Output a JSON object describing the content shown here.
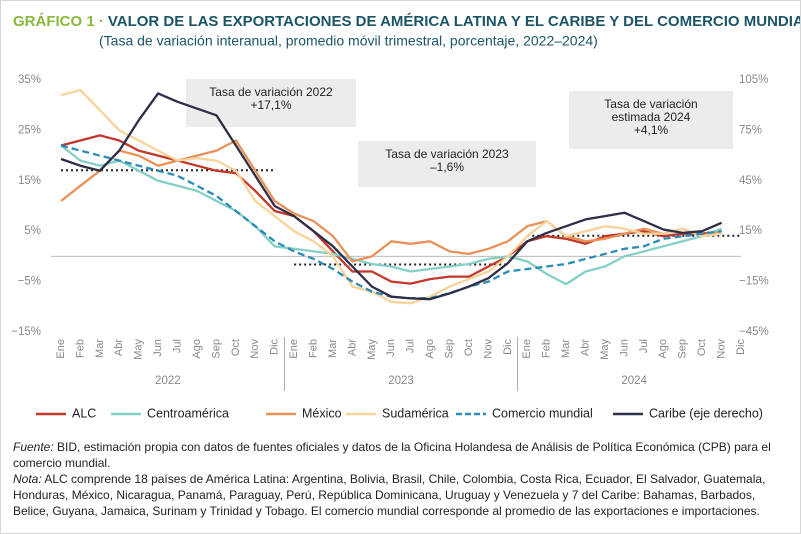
{
  "chart_data": {
    "type": "line",
    "figure_label": "GRÁFICO 1 ·",
    "title": "VALOR DE LAS EXPORTACIONES DE AMÉRICA LATINA Y EL CARIBE Y DEL COMERCIO MUNDIAL",
    "subtitle": "(Tasa de variación interanual, promedio móvil trimestral, porcentaje, 2022–2024)",
    "categories": [
      "Ene",
      "Feb",
      "Mar",
      "Abr",
      "May",
      "Jun",
      "Jul",
      "Ago",
      "Sep",
      "Oct",
      "Nov",
      "Dic",
      "Ene",
      "Feb",
      "Mar",
      "Abr",
      "May",
      "Jun",
      "Jul",
      "Ago",
      "Sep",
      "Oct",
      "Nov",
      "Dic",
      "Ene",
      "Feb",
      "Mar",
      "Abr",
      "May",
      "Jun",
      "Jul",
      "Ago",
      "Sep",
      "Oct",
      "Nov",
      "Dic"
    ],
    "x_groups": [
      "2022",
      "2023",
      "2024"
    ],
    "ylim": [
      -15,
      35
    ],
    "yticks": [
      {
        "value": -15,
        "label": "−15%"
      },
      {
        "value": -5,
        "label": "−5%"
      },
      {
        "value": 5,
        "label": "5%"
      },
      {
        "value": 15,
        "label": "15%"
      },
      {
        "value": 25,
        "label": "25%"
      },
      {
        "value": 35,
        "label": "35%"
      }
    ],
    "y2lim": [
      -45,
      105
    ],
    "y2ticks": [
      {
        "value": -45,
        "label": "−45%"
      },
      {
        "value": -15,
        "label": "−15%"
      },
      {
        "value": 15,
        "label": "15%"
      },
      {
        "value": 45,
        "label": "45%"
      },
      {
        "value": 75,
        "label": "75%"
      },
      {
        "value": 105,
        "label": "105%"
      }
    ],
    "grid": false,
    "legend": "bottom",
    "series": [
      {
        "name": "ALC",
        "color": "#c0392b",
        "values": [
          22,
          23,
          24,
          23,
          21,
          20,
          19,
          18,
          17,
          16.5,
          13,
          9,
          8,
          5,
          1,
          -3,
          -3,
          -5,
          -5.4,
          -4.5,
          -4,
          -4,
          -2,
          0,
          3,
          4,
          3.5,
          2.5,
          4,
          4.5,
          5,
          4,
          4.5,
          4.5,
          5,
          null
        ]
      },
      {
        "name": "Centroamérica",
        "color": "#84d0c9",
        "values": [
          22,
          19,
          18,
          19,
          17,
          15,
          14,
          13,
          11,
          9,
          6,
          2,
          1.5,
          1,
          0.5,
          -0.5,
          -1.5,
          -2,
          -3,
          -2.5,
          -2,
          -1.5,
          -0.5,
          0,
          -1,
          -3.5,
          -5.5,
          -3,
          -2,
          0,
          1,
          2,
          3,
          4,
          5.5,
          null
        ]
      },
      {
        "name": "México",
        "color": "#e8925a",
        "values": [
          11,
          14,
          17,
          21,
          20,
          18,
          19,
          20,
          21,
          23,
          17,
          11,
          8.5,
          7,
          4,
          -1,
          0,
          3,
          2.5,
          3,
          1,
          0.5,
          1.5,
          3,
          6,
          7,
          4,
          3,
          3.5,
          4.5,
          5.5,
          4.5,
          5.5,
          4,
          5,
          null
        ]
      },
      {
        "name": "Sudamérica",
        "color": "#f8d49a",
        "values": [
          32,
          33,
          29,
          25,
          23,
          21,
          19,
          19.5,
          19,
          17,
          11,
          8,
          5,
          3,
          0,
          -6,
          -7,
          -9,
          -9.3,
          -8,
          -6,
          -4.5,
          -3,
          0,
          4,
          7,
          4,
          5,
          6,
          5.5,
          4.5,
          4.5,
          5.5,
          4,
          4.5,
          null
        ]
      },
      {
        "name": "Comercio mundial",
        "color": "#2e8bb5",
        "dashed": true,
        "values": [
          22,
          21,
          20,
          19,
          18,
          17,
          16,
          14,
          12,
          9,
          6,
          3,
          1,
          -0.5,
          -2.5,
          -5,
          -7,
          -8,
          -8.3,
          -8.3,
          -7.3,
          -6,
          -5,
          -3,
          -2.5,
          -2,
          -1.5,
          -0.5,
          0.5,
          1.5,
          2,
          3.5,
          4,
          4.5,
          5,
          null
        ]
      },
      {
        "name": "Caribe (eje derecho)",
        "color": "#2e2e48",
        "axis": "y2",
        "values": [
          58,
          54,
          51,
          63,
          81,
          97,
          92,
          88,
          84,
          66,
          48,
          30,
          24,
          15,
          6,
          -6,
          -18,
          -24,
          -25,
          -25.5,
          -22,
          -18,
          -13,
          -4,
          9,
          14,
          18,
          22,
          24,
          26,
          21,
          16,
          14,
          15,
          20,
          null
        ]
      }
    ],
    "annotations": [
      {
        "lines": [
          "Tasa de variación 2022"
        ],
        "value_label": "+17,1%",
        "value": 17.1
      },
      {
        "lines": [
          "Tasa de variación 2023"
        ],
        "value_label": "–1,6%",
        "value": -1.6
      },
      {
        "lines": [
          "Tasa de variación",
          "estimada 2024"
        ],
        "value_label": "+4,1%",
        "value": 4.1
      }
    ]
  },
  "notes": {
    "source_label": "Fuente:",
    "source": " BID, estimación propia con datos de fuentes oficiales y datos de la Oficina Holandesa de Análisis de Política Económica (CPB) para el comercio mundial.",
    "note_label": "Nota:",
    "note": " ALC comprende 18 países de América Latina: Argentina, Bolivia, Brasil, Chile, Colombia, Costa Rica, Ecuador, El Salvador, Guatemala, Honduras, México, Nicaragua, Panamá, Paraguay, Perú, República Dominicana, Uruguay y Venezuela y 7 del Caribe: Bahamas, Barbados, Belice, Guyana, Jamaica, Surinam y Trinidad y Tobago. El comercio mundial corresponde al promedio de las exportaciones e importaciones."
  }
}
